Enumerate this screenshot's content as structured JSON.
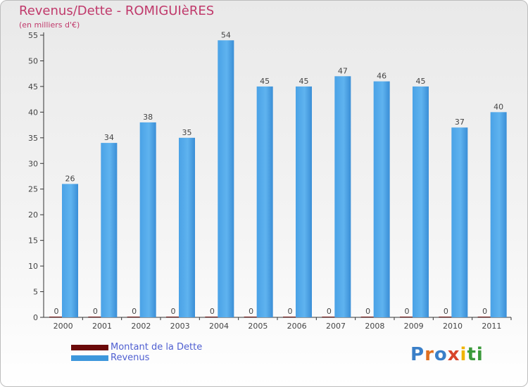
{
  "chart_data": {
    "type": "bar",
    "title": "Revenus/Dette - ROMIGUIèRES",
    "subtitle": "(en milliers d'€)",
    "categories": [
      "2000",
      "2001",
      "2002",
      "2003",
      "2004",
      "2005",
      "2006",
      "2007",
      "2008",
      "2009",
      "2010",
      "2011"
    ],
    "series": [
      {
        "name": "Montant de la Dette",
        "color": "#6b0a0a",
        "values": [
          0,
          0,
          0,
          0,
          0,
          0,
          0,
          0,
          0,
          0,
          0,
          0
        ]
      },
      {
        "name": "Revenus",
        "color": "#3d97dc",
        "values": [
          26,
          34,
          38,
          35,
          54,
          45,
          45,
          47,
          46,
          45,
          37,
          40
        ]
      }
    ],
    "ylim": [
      0,
      55
    ],
    "yticks": [
      0,
      5,
      10,
      15,
      20,
      25,
      30,
      35,
      40,
      45,
      50,
      55
    ],
    "grid": false,
    "legend_position": "bottom-left"
  },
  "logo": {
    "letters": [
      "P",
      "r",
      "o",
      "x",
      "i",
      "t",
      "i"
    ],
    "colors": [
      "#3a7fc8",
      "#e06f1f",
      "#3a7fc8",
      "#d8452b",
      "#f0b400",
      "#3a9a3a",
      "#3a9a3a"
    ]
  }
}
